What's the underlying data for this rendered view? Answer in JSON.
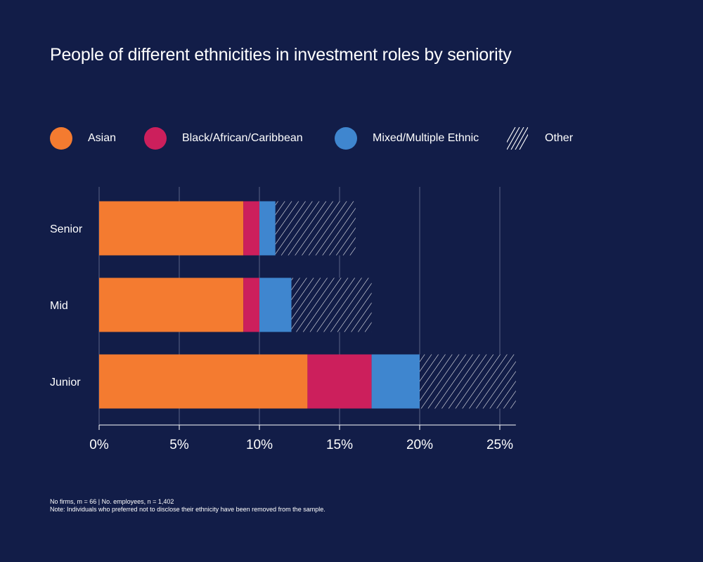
{
  "title": "People of different ethnicities in investment roles by seniority",
  "footnote": {
    "line1": "No firms, m = 66  |  No. employees, n = 1,402",
    "line2": "Note: Individuals who preferred not to disclose their ethnicity have been removed from the sample."
  },
  "colors": {
    "background": "#121d48",
    "asian": "#f47b30",
    "black": "#cc1f5c",
    "mixed": "#3f86cf",
    "other_hatch": "#ffffff",
    "grid": "#5a6386"
  },
  "chart_data": {
    "type": "bar",
    "orientation": "horizontal",
    "stacked": true,
    "title": "People of different ethnicities in investment roles by seniority",
    "xlabel": "",
    "ylabel": "",
    "categories": [
      "Senior",
      "Mid",
      "Junior"
    ],
    "series": [
      {
        "name": "Asian",
        "color": "#f47b30",
        "fill": "solid",
        "values": [
          9,
          9,
          13
        ]
      },
      {
        "name": "Black/African/Caribbean",
        "color": "#cc1f5c",
        "fill": "solid",
        "values": [
          1,
          1,
          4
        ]
      },
      {
        "name": "Mixed/Multiple Ethnic",
        "color": "#3f86cf",
        "fill": "solid",
        "values": [
          1,
          2,
          3
        ]
      },
      {
        "name": "Other",
        "color": "#ffffff",
        "fill": "hatch",
        "values": [
          5,
          5,
          6
        ]
      }
    ],
    "xlim": [
      0,
      26
    ],
    "xticks": [
      0,
      5,
      10,
      15,
      20,
      25
    ],
    "xtick_labels": [
      "0%",
      "5%",
      "10%",
      "15%",
      "20%",
      "25%"
    ],
    "grid": true,
    "legend_position": "top"
  }
}
